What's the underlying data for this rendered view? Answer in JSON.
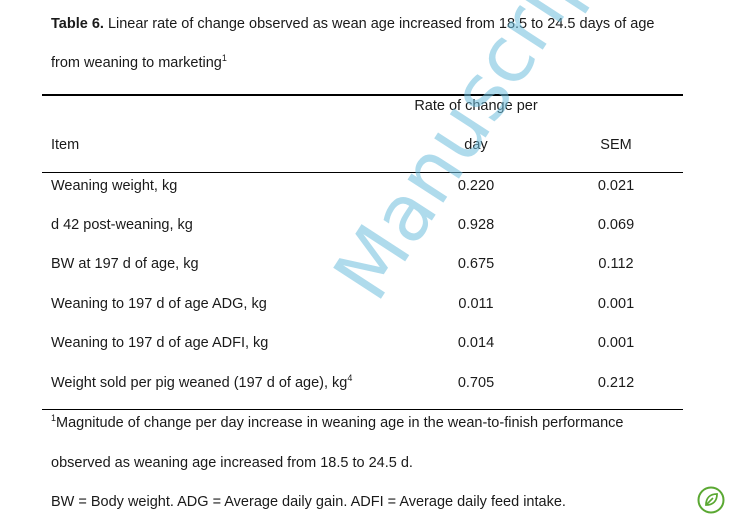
{
  "caption": {
    "label": "Table 6.",
    "line1": " Linear rate of change observed as wean age increased from 18.5 to 24.5 days of age",
    "line2": "from weaning to marketing",
    "line2_sup": "1"
  },
  "header": {
    "span_label": "Rate of change per",
    "item": "Item",
    "rate": "day",
    "sem": "SEM"
  },
  "rows": [
    {
      "item": "Weaning weight, kg",
      "sup": "",
      "rate": "0.220",
      "sem": "0.021"
    },
    {
      "item": "d 42 post-weaning, kg",
      "sup": "",
      "rate": "0.928",
      "sem": "0.069"
    },
    {
      "item": "BW at 197 d of age, kg",
      "sup": "",
      "rate": "0.675",
      "sem": "0.112"
    },
    {
      "item": "Weaning to 197 d of age ADG, kg",
      "sup": "",
      "rate": "0.011",
      "sem": "0.001"
    },
    {
      "item": "Weaning to 197 d of age ADFI, kg",
      "sup": "",
      "rate": "0.014",
      "sem": "0.001"
    },
    {
      "item": "Weight sold per pig weaned (197 d of age), kg",
      "sup": "4",
      "rate": "0.705",
      "sem": "0.212"
    }
  ],
  "footnotes": {
    "fn1_sup": "1",
    "fn1_line1": "Magnitude of change per day increase in weaning age in the wean-to-finish performance",
    "fn1_line2": "observed as weaning age increased from 18.5 to 24.5 d.",
    "abbrev": "BW = Body weight. ADG = Average daily gain. ADFI = Average daily feed intake."
  },
  "watermark": {
    "text": "Manuscript",
    "color": "#6ebedc"
  },
  "badge": {
    "icon": "leaf-badge-icon",
    "color": "#5aa832"
  }
}
